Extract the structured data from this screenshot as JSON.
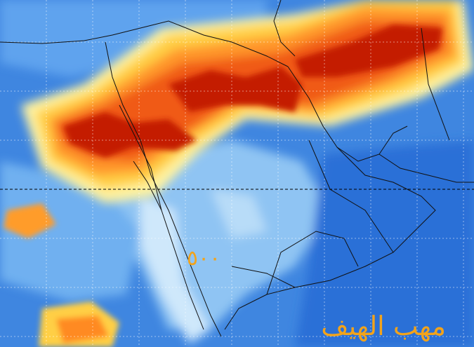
{
  "watermark": "مهب الهيف",
  "level_label": "٥٠٠"
}
